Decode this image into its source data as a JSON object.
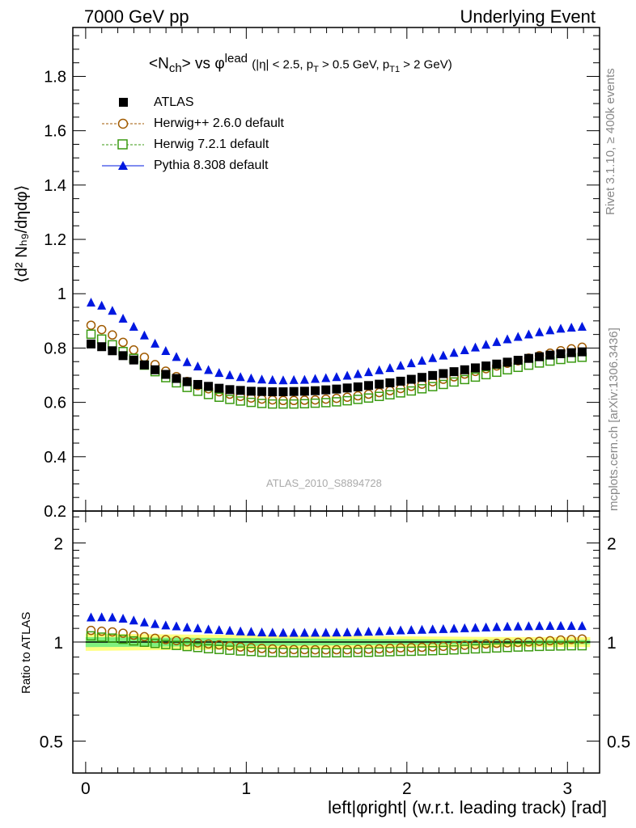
{
  "header": {
    "left": "7000 GeV pp",
    "right": "Underlying Event"
  },
  "side_labels": {
    "top": "Rivet 3.1.10, ≥ 400k events",
    "bottom": "mcplots.cern.ch [arXiv:1306.3436]"
  },
  "plot_title": {
    "main": "<N",
    "main_sub": "ch",
    "mid": "> vs φ",
    "mid_sup": "lead",
    "cuts": "(|η| < 2.5, p",
    "cuts_sub1": "T",
    "cuts2": " > 0.5 GeV, p",
    "cuts_sub2": "T1",
    "cuts3": " > 2 GeV)"
  },
  "analysis_id": "ATLAS_2010_S8894728",
  "y_upper_title": "⟨d² Nₕ₉/dηdφ⟩",
  "y_lower_title": "Ratio to ATLAS",
  "x_title": "left|φright| (w.r.t. leading track) [rad]",
  "legend": {
    "atlas": "ATLAS",
    "herwigpp": "Herwig++ 2.6.0 default",
    "herwig7": "Herwig 7.2.1 default",
    "pythia": "Pythia 8.308 default"
  },
  "colors": {
    "atlas": "#000000",
    "herwigpp": "#a05a00",
    "herwig7": "#3a9a10",
    "pythia": "#0018e0",
    "band_inner": "#7ff07f",
    "band_outer": "#ffff80"
  },
  "chart_data": {
    "type": "scatter",
    "upper": {
      "xlim": [
        -0.08,
        3.2
      ],
      "ylim": [
        0.2,
        1.98
      ],
      "yticks": [
        0.2,
        0.4,
        0.6,
        0.8,
        1,
        1.2,
        1.4,
        1.6,
        1.8
      ],
      "ytick_labels": [
        "0.2",
        "0.4",
        "0.6",
        "0.8",
        "1",
        "1.2",
        "1.4",
        "1.6",
        "1.8"
      ]
    },
    "lower": {
      "scale": "log",
      "ylim": [
        0.4,
        2.5
      ],
      "yticks": [
        0.5,
        1,
        2
      ],
      "ytick_labels": [
        "0.5",
        "1",
        "2"
      ]
    },
    "xticks": [
      0,
      1,
      2,
      3
    ],
    "xtick_labels": [
      "0",
      "1",
      "2",
      "3"
    ],
    "x": [
      0.0333,
      0.0997,
      0.1662,
      0.2327,
      0.2992,
      0.3656,
      0.4321,
      0.4986,
      0.5651,
      0.6315,
      0.698,
      0.7645,
      0.831,
      0.8974,
      0.9639,
      1.0304,
      1.0969,
      1.1633,
      1.2298,
      1.2963,
      1.3628,
      1.4292,
      1.4957,
      1.5622,
      1.6287,
      1.6951,
      1.7616,
      1.8281,
      1.8946,
      1.961,
      2.0275,
      2.094,
      2.1605,
      2.2269,
      2.2934,
      2.3599,
      2.4264,
      2.4928,
      2.5593,
      2.6258,
      2.6923,
      2.7587,
      2.8252,
      2.8917,
      2.9582,
      3.0246,
      3.0911
    ],
    "series": [
      {
        "name": "ATLAS",
        "values": [
          0.815,
          0.805,
          0.79,
          0.772,
          0.756,
          0.738,
          0.72,
          0.703,
          0.688,
          0.676,
          0.666,
          0.659,
          0.652,
          0.647,
          0.644,
          0.641,
          0.64,
          0.639,
          0.639,
          0.64,
          0.641,
          0.643,
          0.646,
          0.649,
          0.653,
          0.657,
          0.662,
          0.667,
          0.672,
          0.678,
          0.685,
          0.692,
          0.699,
          0.706,
          0.713,
          0.72,
          0.727,
          0.734,
          0.741,
          0.748,
          0.755,
          0.762,
          0.768,
          0.774,
          0.779,
          0.783,
          0.786
        ]
      },
      {
        "name": "Herwig++ 2.6.0 default",
        "values": [
          0.884,
          0.868,
          0.848,
          0.821,
          0.793,
          0.766,
          0.739,
          0.715,
          0.695,
          0.677,
          0.662,
          0.65,
          0.639,
          0.63,
          0.622,
          0.616,
          0.612,
          0.609,
          0.607,
          0.607,
          0.608,
          0.609,
          0.612,
          0.615,
          0.619,
          0.624,
          0.63,
          0.636,
          0.643,
          0.651,
          0.659,
          0.667,
          0.676,
          0.685,
          0.694,
          0.704,
          0.714,
          0.724,
          0.734,
          0.744,
          0.753,
          0.763,
          0.772,
          0.781,
          0.79,
          0.797,
          0.803
        ]
      },
      {
        "name": "Herwig 7.2.1 default",
        "values": [
          0.851,
          0.833,
          0.812,
          0.787,
          0.762,
          0.737,
          0.713,
          0.691,
          0.672,
          0.655,
          0.641,
          0.629,
          0.619,
          0.611,
          0.605,
          0.6,
          0.596,
          0.594,
          0.594,
          0.594,
          0.595,
          0.597,
          0.599,
          0.602,
          0.606,
          0.611,
          0.616,
          0.622,
          0.628,
          0.635,
          0.642,
          0.65,
          0.658,
          0.666,
          0.675,
          0.684,
          0.693,
          0.702,
          0.711,
          0.72,
          0.729,
          0.737,
          0.745,
          0.752,
          0.758,
          0.763,
          0.766
        ]
      },
      {
        "name": "Pythia 8.308 default",
        "values": [
          0.966,
          0.955,
          0.936,
          0.907,
          0.877,
          0.845,
          0.815,
          0.788,
          0.766,
          0.747,
          0.731,
          0.718,
          0.707,
          0.699,
          0.692,
          0.687,
          0.683,
          0.681,
          0.68,
          0.681,
          0.682,
          0.685,
          0.688,
          0.692,
          0.697,
          0.703,
          0.71,
          0.717,
          0.725,
          0.734,
          0.743,
          0.752,
          0.762,
          0.771,
          0.781,
          0.791,
          0.801,
          0.811,
          0.821,
          0.831,
          0.84,
          0.849,
          0.857,
          0.864,
          0.87,
          0.874,
          0.877
        ]
      }
    ]
  }
}
